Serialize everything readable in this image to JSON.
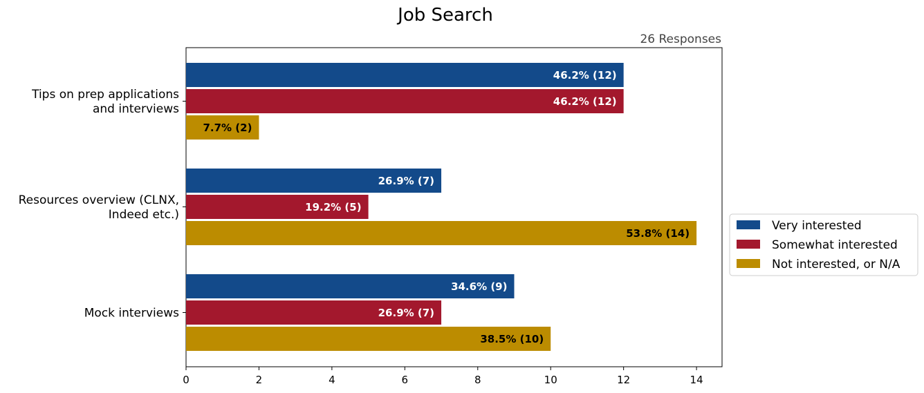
{
  "chart_data": {
    "type": "bar",
    "orientation": "horizontal",
    "title": "Job Search",
    "subtitle": "26 Responses",
    "xlabel": "",
    "ylabel": "",
    "xlim": [
      0,
      14.7
    ],
    "xticks": [
      0,
      2,
      4,
      6,
      8,
      10,
      12,
      14
    ],
    "grid": false,
    "legend_position": "right",
    "categories": [
      "Tips on prep applications and interviews",
      "Resources overview (CLNX, Indeed etc.)",
      "Mock interviews"
    ],
    "category_label_lines": [
      [
        "Tips on prep applications",
        "and interviews"
      ],
      [
        "Resources overview (CLNX,",
        "Indeed etc.)"
      ],
      [
        "Mock interviews"
      ]
    ],
    "series": [
      {
        "name": "Very interested",
        "color": "#134a8a",
        "label_color": "#ffffff",
        "values": [
          12,
          7,
          9
        ],
        "labels": [
          "46.2% (12)",
          "26.9% (7)",
          "34.6% (9)"
        ]
      },
      {
        "name": "Somewhat interested",
        "color": "#a3182d",
        "label_color": "#ffffff",
        "values": [
          12,
          5,
          7
        ],
        "labels": [
          "46.2% (12)",
          "19.2% (5)",
          "26.9% (7)"
        ]
      },
      {
        "name": "Not interested, or N/A",
        "color": "#bc8c00",
        "label_color": "#000000",
        "values": [
          2,
          14,
          10
        ],
        "labels": [
          "7.7% (2)",
          "53.8% (14)",
          "38.5% (10)"
        ]
      }
    ]
  }
}
